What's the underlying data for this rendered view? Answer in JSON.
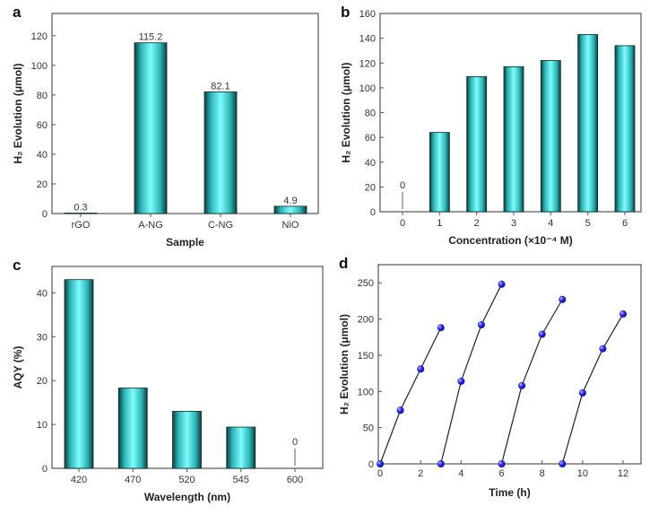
{
  "colors": {
    "bar_edge": "#0f3d3d",
    "bar_mid": "#2bb5b5",
    "bar_light": "#7ffcfc",
    "marker": "#1a1aff",
    "line": "#222222",
    "frame": "#555555"
  },
  "chart_data": [
    {
      "panel": "a",
      "type": "bar",
      "categories": [
        "rGO",
        "A-NG",
        "C-NG",
        "NiO"
      ],
      "values": [
        0.3,
        115.2,
        82.1,
        4.9
      ],
      "data_labels": [
        "0.3",
        "115.2",
        "82.1",
        "4.9"
      ],
      "xlabel": "Sample",
      "ylabel": "H₂ Evolution (μmol)",
      "ylim": [
        0,
        135
      ],
      "yticks": [
        0,
        20,
        40,
        60,
        80,
        100,
        120
      ]
    },
    {
      "panel": "b",
      "type": "bar",
      "categories": [
        "0",
        "1",
        "2",
        "3",
        "4",
        "5",
        "6"
      ],
      "values": [
        0,
        64,
        109,
        117,
        122,
        143,
        134
      ],
      "zero_annotation": "0",
      "xlabel": "Concentration (×10⁻⁴ M)",
      "ylabel": "H₂ Evolution (μmol)",
      "ylim": [
        0,
        160
      ],
      "yticks": [
        0,
        20,
        40,
        60,
        80,
        100,
        120,
        140,
        160
      ]
    },
    {
      "panel": "c",
      "type": "bar",
      "categories": [
        "420",
        "470",
        "520",
        "545",
        "600"
      ],
      "values": [
        43,
        18.3,
        13,
        9.4,
        0
      ],
      "zero_annotation": "0",
      "xlabel": "Wavelength (nm)",
      "ylabel": "AQY (%)",
      "ylim": [
        0,
        46
      ],
      "yticks": [
        0,
        10,
        20,
        30,
        40
      ]
    },
    {
      "panel": "d",
      "type": "line",
      "series": [
        {
          "x": [
            0,
            1,
            2,
            3
          ],
          "y": [
            0,
            74,
            131,
            188
          ]
        },
        {
          "x": [
            3,
            4,
            5,
            6
          ],
          "y": [
            0,
            114,
            192,
            248
          ]
        },
        {
          "x": [
            6,
            7,
            8,
            9
          ],
          "y": [
            0,
            108,
            179,
            227
          ]
        },
        {
          "x": [
            9,
            10,
            11,
            12
          ],
          "y": [
            0,
            98,
            159,
            207
          ]
        }
      ],
      "xlabel": "Time (h)",
      "ylabel": "H₂ Evolution (μmol)",
      "xlim": [
        0,
        13
      ],
      "ylim": [
        0,
        275
      ],
      "xticks": [
        0,
        2,
        4,
        6,
        8,
        10,
        12
      ],
      "yticks": [
        0,
        50,
        100,
        150,
        200,
        250
      ]
    }
  ]
}
